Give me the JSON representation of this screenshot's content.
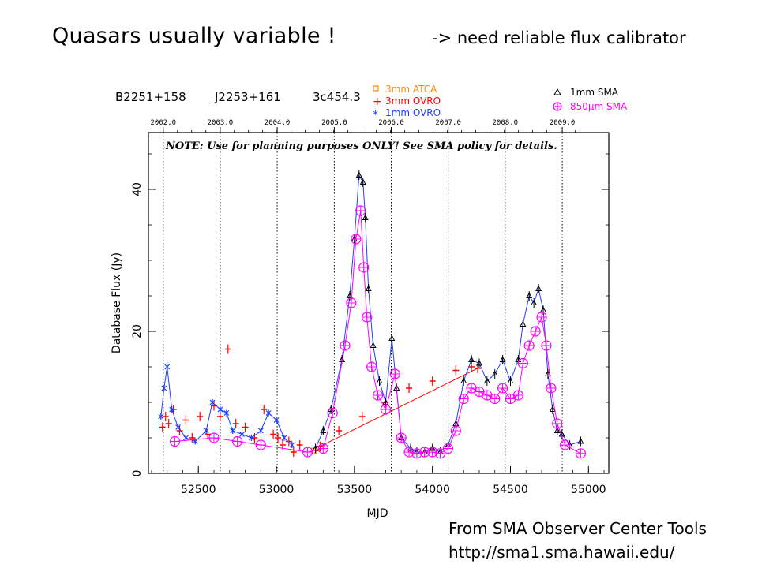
{
  "slide": {
    "title": "Quasars usually variable !",
    "subtitle": "-> need reliable flux calibrator",
    "credit_line1": "From SMA Observer Center Tools",
    "credit_line2": "http://sma1.sma.hawaii.edu/"
  },
  "chart_data": {
    "type": "scatter",
    "source_names": [
      "B2251+158",
      "J2253+161",
      "3c454.3"
    ],
    "note": "NOTE: Use for planning purposes ONLY! See SMA policy for details.",
    "xlabel": "MJD",
    "ylabel": "Database Flux (Jy)",
    "xlim": [
      52180,
      55130
    ],
    "ylim": [
      0,
      48
    ],
    "x_ticks": [
      52500,
      53000,
      53500,
      54000,
      54500,
      55000
    ],
    "y_ticks": [
      0,
      20,
      40
    ],
    "top_axis_years": [
      "2002.0",
      "2003.0",
      "2004.0",
      "2005.0",
      "2006.0",
      "2007.0",
      "2008.0",
      "2009.0"
    ],
    "top_axis_mjd": [
      52275,
      52640,
      53005,
      53371,
      53736,
      54101,
      54466,
      54832
    ],
    "grid": "dotted vertical lines at year boundaries",
    "legend_placement": "top",
    "series": [
      {
        "name": "3mm ATCA",
        "color": "#ff8c00",
        "marker": "square",
        "x": [
          53240,
          53270
        ],
        "y": [
          3.2,
          3.5
        ]
      },
      {
        "name": "3mm OVRO",
        "color": "#ff0000",
        "marker": "plus",
        "x": [
          52270,
          52290,
          52310,
          52340,
          52380,
          52420,
          52460,
          52510,
          52560,
          52600,
          52640,
          52690,
          52740,
          52800,
          52860,
          52920,
          52980,
          53010,
          53040,
          53080,
          53110,
          53150,
          53280,
          53400,
          53550,
          53700,
          53850,
          54000,
          54150,
          54250,
          54290
        ],
        "y": [
          6.5,
          8.0,
          7.0,
          9.0,
          6.0,
          7.5,
          5.0,
          8.0,
          5.5,
          9.5,
          8.0,
          17.5,
          7.0,
          6.5,
          5.0,
          9.0,
          5.5,
          5.0,
          4.0,
          4.5,
          3.0,
          4.0,
          3.8,
          6.0,
          8.0,
          10.0,
          12.0,
          13.0,
          14.5,
          15.0,
          14.8
        ]
      },
      {
        "name": "1mm OVRO",
        "color": "#1f3fff",
        "marker": "star",
        "x": [
          52260,
          52280,
          52300,
          52330,
          52370,
          52420,
          52480,
          52550,
          52590,
          52640,
          52680,
          52720,
          52780,
          52840,
          52900,
          52950,
          53000,
          53050,
          53100
        ],
        "y": [
          8.0,
          12.0,
          15.0,
          9.0,
          6.5,
          5.0,
          4.5,
          6.0,
          10.0,
          9.0,
          8.5,
          6.0,
          5.5,
          5.0,
          6.0,
          8.5,
          7.5,
          5.0,
          4.0
        ]
      },
      {
        "name": "1mm SMA",
        "color": "#000000",
        "marker": "triangle",
        "x": [
          53250,
          53300,
          53350,
          53420,
          53470,
          53500,
          53530,
          53555,
          53570,
          53590,
          53620,
          53660,
          53700,
          53740,
          53770,
          53800,
          53860,
          53900,
          53950,
          54000,
          54050,
          54100,
          54150,
          54200,
          54250,
          54300,
          54350,
          54400,
          54450,
          54500,
          54550,
          54580,
          54620,
          54650,
          54680,
          54710,
          54740,
          54770,
          54800,
          54830,
          54880,
          54950
        ],
        "y": [
          3.5,
          6.0,
          9.0,
          16.0,
          25.0,
          33.0,
          42.0,
          41.0,
          36.0,
          26.0,
          18.0,
          13.0,
          10.0,
          19.0,
          12.0,
          5.0,
          3.5,
          3.0,
          3.0,
          3.5,
          3.0,
          4.0,
          7.0,
          13.0,
          16.0,
          15.5,
          13.0,
          14.0,
          16.0,
          13.0,
          16.0,
          21.0,
          25.0,
          24.0,
          26.0,
          23.0,
          14.0,
          9.0,
          6.0,
          5.5,
          4.0,
          4.5
        ]
      },
      {
        "name": "850µm SMA",
        "color": "#ff00ff",
        "marker": "circle-plus",
        "x": [
          52350,
          52600,
          52750,
          52900,
          53200,
          53300,
          53360,
          53440,
          53480,
          53510,
          53540,
          53560,
          53580,
          53610,
          53650,
          53700,
          53760,
          53800,
          53850,
          53900,
          53950,
          54000,
          54050,
          54100,
          54150,
          54200,
          54250,
          54300,
          54350,
          54400,
          54450,
          54500,
          54550,
          54580,
          54620,
          54660,
          54700,
          54730,
          54760,
          54800,
          54850,
          54950
        ],
        "y": [
          4.5,
          5.0,
          4.5,
          4.0,
          3.0,
          3.5,
          8.5,
          18.0,
          24.0,
          33.0,
          37.0,
          29.0,
          22.0,
          15.0,
          11.0,
          9.0,
          14.0,
          5.0,
          3.0,
          2.8,
          3.0,
          3.0,
          2.8,
          3.5,
          6.0,
          10.5,
          12.0,
          11.5,
          11.0,
          10.5,
          12.0,
          10.5,
          11.0,
          15.5,
          18.0,
          20.0,
          22.0,
          18.0,
          12.0,
          7.0,
          4.0,
          2.8
        ]
      }
    ]
  }
}
